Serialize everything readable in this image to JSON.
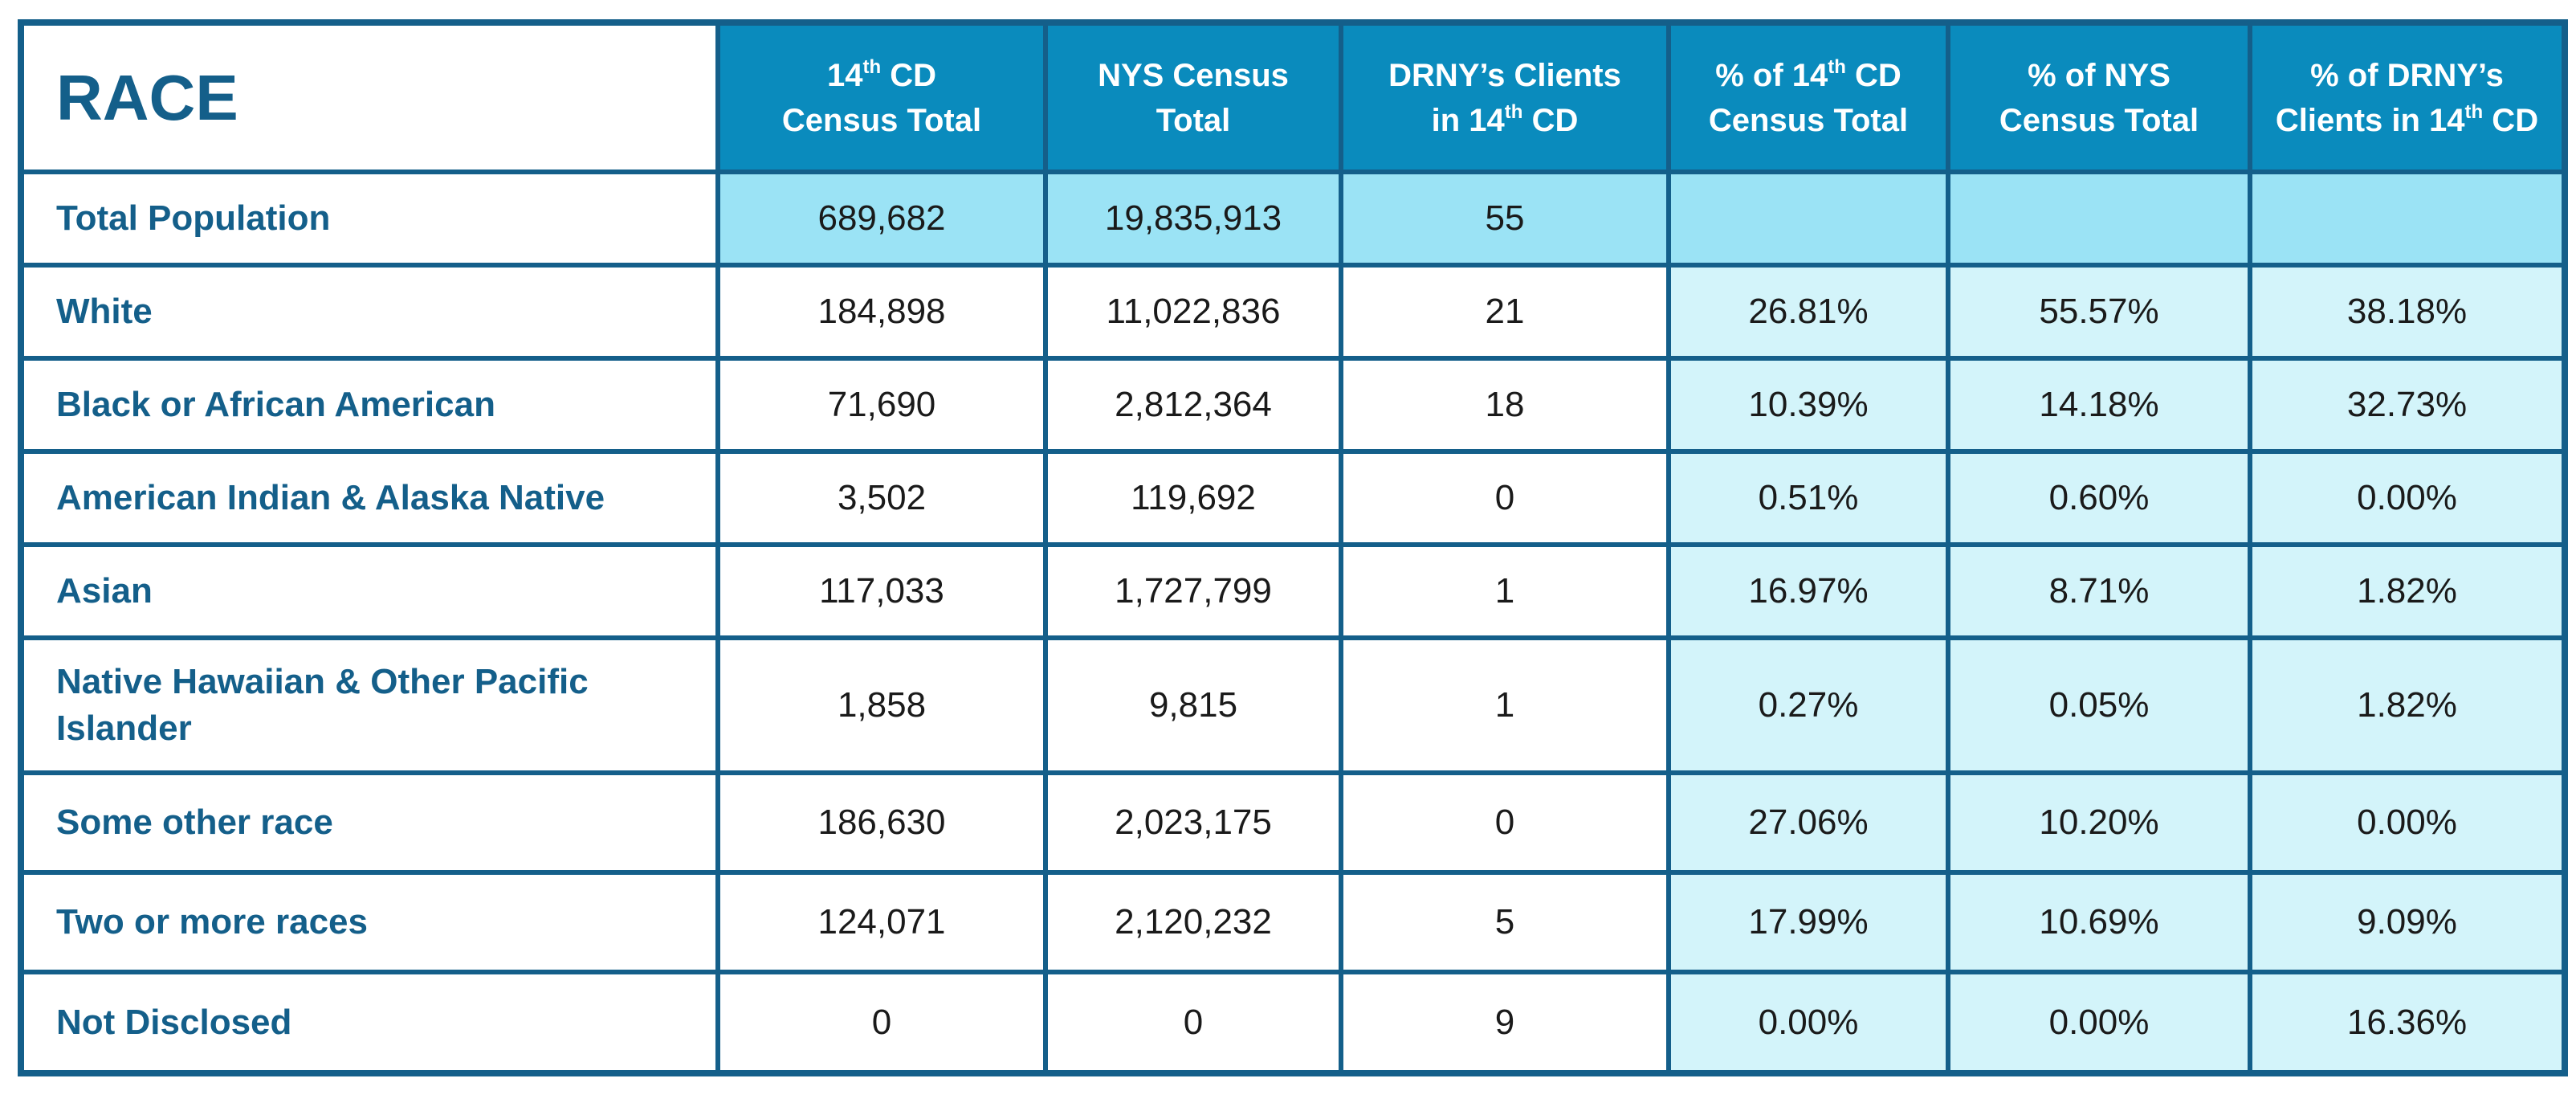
{
  "header": {
    "race": "RACE",
    "col1": {
      "line1_pre": "14",
      "line1_sup": "th",
      "line1_post": " CD",
      "line2": "Census Total"
    },
    "col2": {
      "line1": "NYS Census",
      "line2": "Total"
    },
    "col3": {
      "line1": "DRNY’s Clients",
      "line2_pre": "in 14",
      "line2_sup": "th",
      "line2_post": " CD"
    },
    "col4": {
      "line1_pre": "% of 14",
      "line1_sup": "th",
      "line1_post": " CD",
      "line2": "Census Total"
    },
    "col5": {
      "line1": "% of NYS",
      "line2": "Census Total"
    },
    "col6": {
      "line1": "% of DRNY’s",
      "line2_pre": "Clients in 14",
      "line2_sup": "th",
      "line2_post": " CD"
    }
  },
  "rows": [
    {
      "label": "Total Population",
      "cd14": "689,682",
      "nys": "19,835,913",
      "clients": "55",
      "pct_cd14": "",
      "pct_nys": "",
      "pct_clients": ""
    },
    {
      "label": "White",
      "cd14": "184,898",
      "nys": "11,022,836",
      "clients": "21",
      "pct_cd14": "26.81%",
      "pct_nys": "55.57%",
      "pct_clients": "38.18%"
    },
    {
      "label": "Black or African American",
      "cd14": "71,690",
      "nys": "2,812,364",
      "clients": "18",
      "pct_cd14": "10.39%",
      "pct_nys": "14.18%",
      "pct_clients": "32.73%"
    },
    {
      "label": "American Indian & Alaska Native",
      "cd14": "3,502",
      "nys": "119,692",
      "clients": "0",
      "pct_cd14": "0.51%",
      "pct_nys": "0.60%",
      "pct_clients": "0.00%"
    },
    {
      "label": "Asian",
      "cd14": "117,033",
      "nys": "1,727,799",
      "clients": "1",
      "pct_cd14": "16.97%",
      "pct_nys": "8.71%",
      "pct_clients": "1.82%"
    },
    {
      "label": "Native Hawaiian & Other Pacific Islander",
      "cd14": "1,858",
      "nys": "9,815",
      "clients": "1",
      "pct_cd14": "0.27%",
      "pct_nys": "0.05%",
      "pct_clients": "1.82%"
    },
    {
      "label": "Some other race",
      "cd14": "186,630",
      "nys": "2,023,175",
      "clients": "0",
      "pct_cd14": "27.06%",
      "pct_nys": "10.20%",
      "pct_clients": "0.00%"
    },
    {
      "label": "Two or more races",
      "cd14": "124,071",
      "nys": "2,120,232",
      "clients": "5",
      "pct_cd14": "17.99%",
      "pct_nys": "10.69%",
      "pct_clients": "9.09%"
    },
    {
      "label": "Not Disclosed",
      "cd14": "0",
      "nys": "0",
      "clients": "9",
      "pct_cd14": "0.00%",
      "pct_nys": "0.00%",
      "pct_clients": "16.36%"
    }
  ]
}
